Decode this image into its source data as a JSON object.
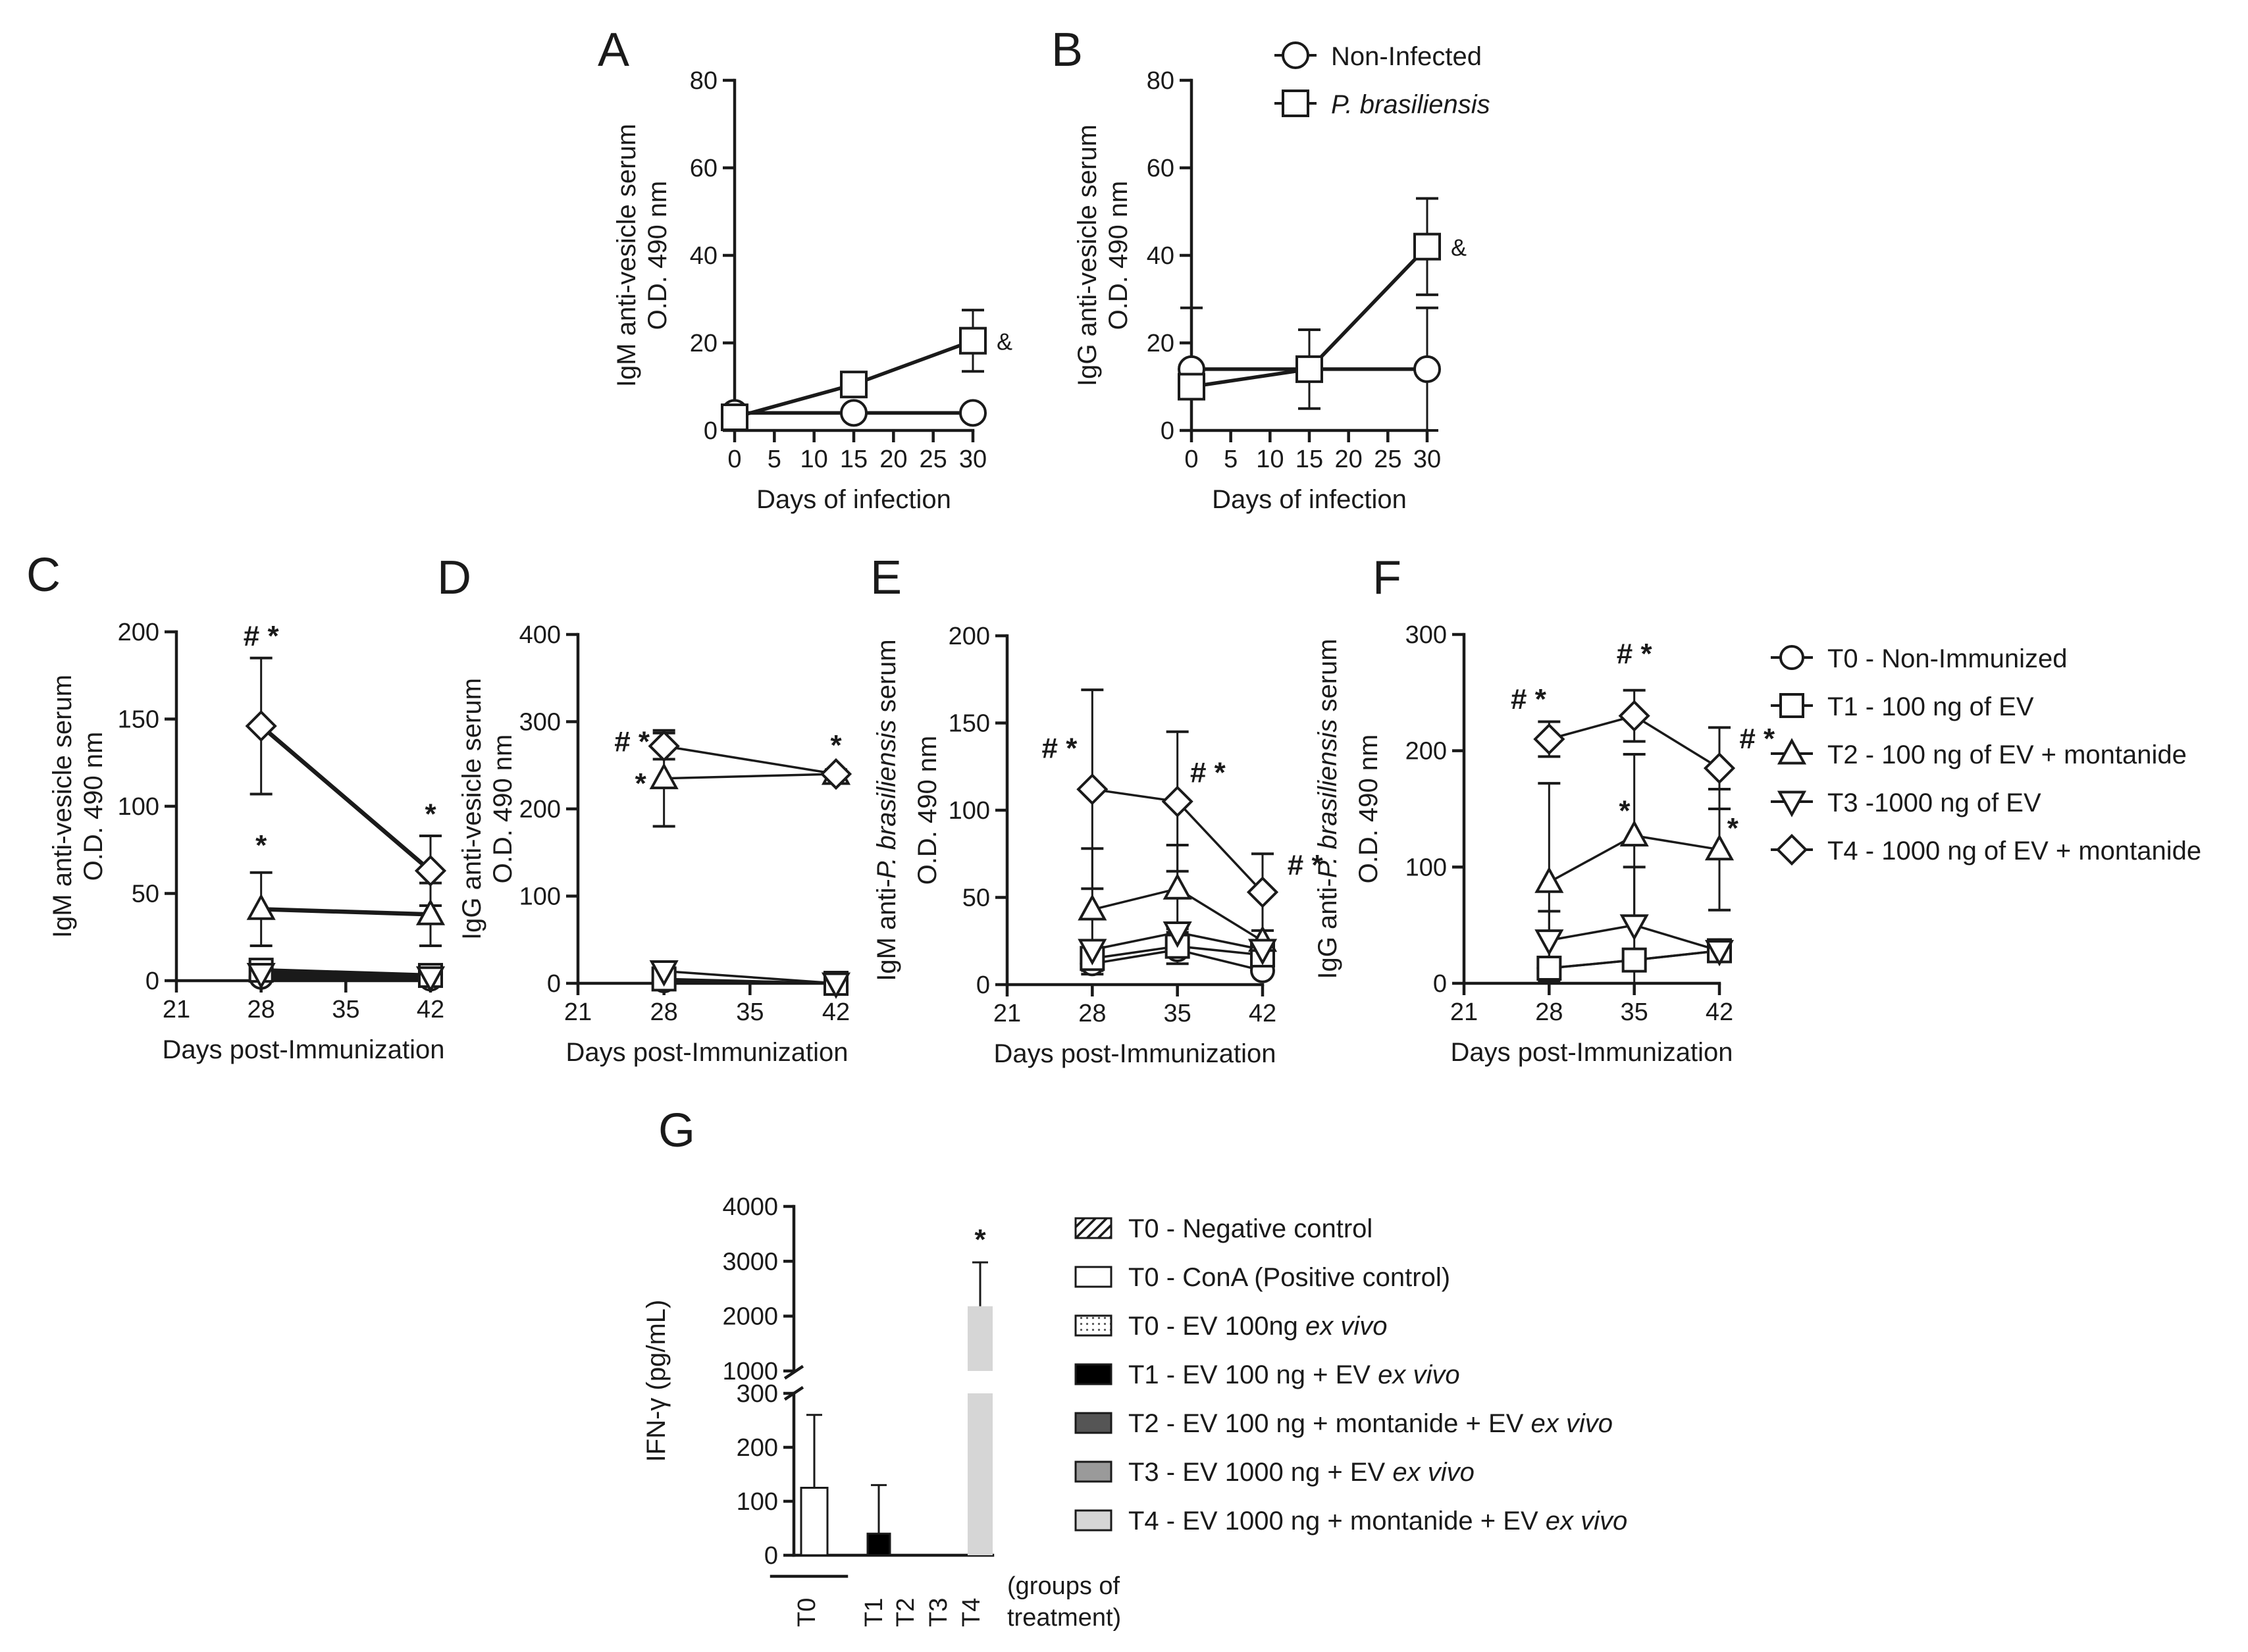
{
  "chart_data": [
    {
      "id": "A",
      "type": "line",
      "panel_label": "A",
      "xlabel": "Days of infection",
      "ylabel_lines": [
        "IgM anti-vesicle serum",
        "O.D. 490 nm"
      ],
      "xlim": [
        0,
        30
      ],
      "ylim": [
        0,
        80
      ],
      "xticks": [
        "0",
        "5",
        "10",
        "15",
        "20",
        "25",
        "30"
      ],
      "xtick_values": [
        0,
        5,
        10,
        15,
        20,
        25,
        30
      ],
      "yticks": [
        "0",
        "20",
        "40",
        "60",
        "80"
      ],
      "ytick_values": [
        0,
        20,
        40,
        60,
        80
      ],
      "series": [
        {
          "name": "Non-Infected",
          "marker": "circle",
          "x": [
            0,
            15,
            30
          ],
          "y": [
            4,
            4,
            4
          ],
          "err": [
            0,
            0,
            0
          ]
        },
        {
          "name": "P. brasiliensis",
          "marker": "square",
          "x": [
            0,
            15,
            30
          ],
          "y": [
            3,
            10.5,
            20.5
          ],
          "err": [
            0,
            0,
            7
          ]
        }
      ],
      "annotations": [
        {
          "text": "&",
          "x": 30,
          "y": 20.5
        }
      ]
    },
    {
      "id": "B",
      "type": "line",
      "panel_label": "B",
      "xlabel": "Days of infection",
      "ylabel_lines": [
        "IgG anti-vesicle serum",
        "O.D. 490 nm"
      ],
      "xlim": [
        0,
        30
      ],
      "ylim": [
        0,
        80
      ],
      "xticks": [
        "0",
        "5",
        "10",
        "15",
        "20",
        "25",
        "30"
      ],
      "xtick_values": [
        0,
        5,
        10,
        15,
        20,
        25,
        30
      ],
      "yticks": [
        "0",
        "20",
        "40",
        "60",
        "80"
      ],
      "ytick_values": [
        0,
        20,
        40,
        60,
        80
      ],
      "series": [
        {
          "name": "Non-Infected",
          "marker": "circle",
          "x": [
            0,
            15,
            30
          ],
          "y": [
            14,
            14,
            14
          ],
          "err": [
            0,
            0,
            14
          ]
        },
        {
          "name": "P. brasiliensis",
          "marker": "square",
          "x": [
            0,
            15,
            30
          ],
          "y": [
            10,
            14,
            42
          ],
          "err": [
            18,
            9,
            11
          ]
        }
      ],
      "annotations": [
        {
          "text": "&",
          "x": 30,
          "y": 42
        }
      ]
    },
    {
      "id": "C",
      "type": "line",
      "panel_label": "C",
      "xlabel": "Days post-Immunization",
      "ylabel_lines": [
        "IgM anti-vesicle serum",
        "O.D. 490 nm"
      ],
      "xlim": [
        21,
        42
      ],
      "ylim": [
        0,
        200
      ],
      "xticks": [
        "21",
        "28",
        "35",
        "42"
      ],
      "xtick_values": [
        21,
        28,
        35,
        42
      ],
      "yticks": [
        "0",
        "50",
        "100",
        "150",
        "200"
      ],
      "ytick_values": [
        0,
        50,
        100,
        150,
        200
      ],
      "series": [
        {
          "name": "T0 - Non-Immunized",
          "marker": "circle",
          "x": [
            28,
            42
          ],
          "y": [
            2,
            1
          ],
          "err": [
            0,
            0
          ]
        },
        {
          "name": "T1 - 100 ng of EV",
          "marker": "square",
          "x": [
            28,
            42
          ],
          "y": [
            6,
            3
          ],
          "err": [
            0,
            0
          ]
        },
        {
          "name": "T2 - 100 ng of EV + montanide",
          "marker": "triangle-up",
          "x": [
            28,
            42
          ],
          "y": [
            41,
            38
          ],
          "err": [
            21,
            18
          ]
        },
        {
          "name": "T3 -1000 ng of EV",
          "marker": "triangle-down",
          "x": [
            28,
            42
          ],
          "y": [
            4,
            2
          ],
          "err": [
            0,
            0
          ]
        },
        {
          "name": "T4 - 1000 ng of EV + montanide",
          "marker": "diamond",
          "x": [
            28,
            42
          ],
          "y": [
            146,
            63
          ],
          "err": [
            39,
            20
          ]
        }
      ],
      "annotations": [
        {
          "text": "# *",
          "x": 28,
          "y": 192
        },
        {
          "text": "*",
          "x": 28,
          "y": 72
        },
        {
          "text": "*",
          "x": 42,
          "y": 90
        }
      ]
    },
    {
      "id": "D",
      "type": "line",
      "panel_label": "D",
      "xlabel": "Days post-Immunization",
      "ylabel_lines": [
        "IgG anti-vesicle serum",
        "O.D. 490 nm"
      ],
      "xlim": [
        21,
        42
      ],
      "ylim": [
        0,
        400
      ],
      "xticks": [
        "21",
        "28",
        "35",
        "42"
      ],
      "xtick_values": [
        21,
        28,
        35,
        42
      ],
      "yticks": [
        "0",
        "100",
        "200",
        "300",
        "400"
      ],
      "ytick_values": [
        0,
        100,
        200,
        300,
        400
      ],
      "series": [
        {
          "name": "T0 - Non-Immunized",
          "marker": "circle",
          "x": [
            28,
            42
          ],
          "y": [
            3,
            0
          ],
          "err": [
            0,
            0
          ]
        },
        {
          "name": "T1 - 100 ng of EV",
          "marker": "square",
          "x": [
            28,
            42
          ],
          "y": [
            5,
            0
          ],
          "err": [
            0,
            0
          ]
        },
        {
          "name": "T2 - 100 ng of EV + montanide",
          "marker": "triangle-up",
          "x": [
            28,
            42
          ],
          "y": [
            235,
            240
          ],
          "err": [
            55,
            5
          ]
        },
        {
          "name": "T3 -1000 ng of EV",
          "marker": "triangle-down",
          "x": [
            28,
            42
          ],
          "y": [
            14,
            0
          ],
          "err": [
            0,
            0
          ]
        },
        {
          "name": "T4 - 1000 ng of EV + montanide",
          "marker": "diamond",
          "x": [
            28,
            42
          ],
          "y": [
            272,
            240
          ],
          "err": [
            15,
            5
          ]
        }
      ],
      "annotations": [
        {
          "text": "# *",
          "x": 25.4,
          "y": 266
        },
        {
          "text": "*",
          "x": 26.1,
          "y": 218
        },
        {
          "text": "*",
          "x": 42,
          "y": 262
        }
      ]
    },
    {
      "id": "E",
      "type": "line",
      "panel_label": "E",
      "xlabel": "Days post-Immunization",
      "ylabel_lines": [
        "IgM anti-P. brasiliensis serum",
        "O.D. 490 nm"
      ],
      "xlim": [
        21,
        42
      ],
      "ylim": [
        0,
        200
      ],
      "xticks": [
        "21",
        "28",
        "35",
        "42"
      ],
      "xtick_values": [
        21,
        28,
        35,
        42
      ],
      "yticks": [
        "0",
        "50",
        "100",
        "150",
        "200"
      ],
      "ytick_values": [
        0,
        50,
        100,
        150,
        200
      ],
      "series": [
        {
          "name": "T0 - Non-Immunized",
          "marker": "circle",
          "x": [
            28,
            35,
            42
          ],
          "y": [
            12,
            20,
            8
          ],
          "err": [
            0,
            0,
            0
          ]
        },
        {
          "name": "T1 - 100 ng of EV",
          "marker": "square",
          "x": [
            28,
            35,
            42
          ],
          "y": [
            15,
            22,
            17
          ],
          "err": [
            9,
            10,
            0
          ]
        },
        {
          "name": "T2 - 100 ng of EV + montanide",
          "marker": "triangle-up",
          "x": [
            28,
            35,
            42
          ],
          "y": [
            43,
            55,
            25
          ],
          "err": [
            35,
            25,
            0
          ]
        },
        {
          "name": "T3 -1000 ng of EV",
          "marker": "triangle-down",
          "x": [
            28,
            35,
            42
          ],
          "y": [
            20,
            30,
            20
          ],
          "err": [
            0,
            0,
            0
          ]
        },
        {
          "name": "T4 - 1000 ng of EV + montanide",
          "marker": "diamond",
          "x": [
            28,
            35,
            42
          ],
          "y": [
            112,
            105,
            53
          ],
          "err": [
            57,
            40,
            22
          ]
        }
      ],
      "annotations": [
        {
          "text": "# *",
          "x": 25.3,
          "y": 130
        },
        {
          "text": "# *",
          "x": 37.5,
          "y": 116
        },
        {
          "text": "# *",
          "x": 45.5,
          "y": 63
        }
      ]
    },
    {
      "id": "F",
      "type": "line",
      "panel_label": "F",
      "xlabel": "Days post-Immunization",
      "ylabel_lines": [
        "IgG anti-P. brasiliensis serum",
        "O.D. 490 nm"
      ],
      "xlim": [
        21,
        42
      ],
      "ylim": [
        0,
        300
      ],
      "xticks": [
        "21",
        "28",
        "35",
        "42"
      ],
      "xtick_values": [
        21,
        28,
        35,
        42
      ],
      "yticks": [
        "0",
        "100",
        "200",
        "300"
      ],
      "ytick_values": [
        0,
        100,
        200,
        300
      ],
      "series": [
        {
          "name": "T0 - Non-Immunized",
          "marker": "circle",
          "x": [
            28,
            35,
            42
          ],
          "y": [
            13,
            20,
            28
          ],
          "err": [
            0,
            0,
            0
          ]
        },
        {
          "name": "T1 - 100 ng of EV",
          "marker": "square",
          "x": [
            28,
            35,
            42
          ],
          "y": [
            13,
            20,
            28
          ],
          "err": [
            0,
            0,
            0
          ]
        },
        {
          "name": "T2 - 100 ng of EV + montanide",
          "marker": "triangle-up",
          "x": [
            28,
            35,
            42
          ],
          "y": [
            87,
            127,
            115
          ],
          "err": [
            85,
            70,
            52
          ]
        },
        {
          "name": "T3 -1000 ng of EV",
          "marker": "triangle-down",
          "x": [
            28,
            35,
            42
          ],
          "y": [
            37,
            50,
            28
          ],
          "err": [
            25,
            50,
            0
          ]
        },
        {
          "name": "T4 - 1000 ng of EV + montanide",
          "marker": "diamond",
          "x": [
            28,
            35,
            42
          ],
          "y": [
            210,
            230,
            185
          ],
          "err": [
            15,
            22,
            35
          ]
        }
      ],
      "annotations": [
        {
          "text": "# *",
          "x": 26.3,
          "y": 236
        },
        {
          "text": "# *",
          "x": 35,
          "y": 275
        },
        {
          "text": "# *",
          "x": 45.1,
          "y": 202
        },
        {
          "text": "*",
          "x": 34.2,
          "y": 140
        },
        {
          "text": "*",
          "x": 43.1,
          "y": 125
        }
      ]
    },
    {
      "id": "G",
      "type": "bar",
      "panel_label": "G",
      "ylabel": "IFN-γ (pg/mL)",
      "y_lower_ticks": [
        "0",
        "100",
        "200",
        "300"
      ],
      "y_lower_values": [
        0,
        100,
        200,
        300
      ],
      "y_upper_ticks": [
        "1000",
        "2000",
        "3000",
        "4000"
      ],
      "y_upper_values": [
        1000,
        2000,
        3000,
        4000
      ],
      "axis_break": [
        300,
        1000
      ],
      "categories": [
        "T0 - Negative control",
        "T0 - ConA (Positive control)",
        "T0 - EV 100ng ex vivo",
        "T1 - EV 100 ng + EV ex vivo",
        "T2 - EV 100 ng + montanide + EV ex vivo",
        "T3 - EV 1000 ng + EV ex vivo",
        "T4 - EV 1000 ng + montanide + EV ex vivo"
      ],
      "values": [
        0,
        125,
        0,
        40,
        0,
        0,
        2180
      ],
      "errors": [
        0,
        135,
        0,
        90,
        0,
        0,
        800
      ],
      "group_labels": [
        "T0",
        "T1",
        "T2",
        "T3",
        "T4"
      ],
      "group_caption": "(groups of treatment)",
      "annotations": [
        {
          "text": "*",
          "category": "T4 - EV 1000 ng + montanide + EV ex vivo"
        }
      ]
    }
  ],
  "legend_top": {
    "items": [
      {
        "marker": "circle",
        "label": "Non-Infected"
      },
      {
        "marker": "square",
        "label": "P. brasiliensis"
      }
    ]
  },
  "legend_middle": {
    "items": [
      {
        "marker": "circle",
        "label": "T0 - Non-Immunized"
      },
      {
        "marker": "square",
        "label": "T1 - 100 ng of EV"
      },
      {
        "marker": "triangle-up",
        "label": "T2 - 100 ng of EV + montanide"
      },
      {
        "marker": "triangle-down",
        "label": "T3 -1000 ng of EV"
      },
      {
        "marker": "diamond",
        "label": "T4 - 1000 ng of EV + montanide"
      }
    ]
  },
  "legend_bottom": {
    "items": [
      {
        "swatch": "hatched",
        "color": "#ffffff",
        "label": "T0 - Negative control"
      },
      {
        "swatch": "open",
        "color": "#ffffff",
        "label": "T0 - ConA (Positive control)"
      },
      {
        "swatch": "dotted",
        "color": "#ffffff",
        "label": "T0 - EV 100ng ex vivo"
      },
      {
        "swatch": "solid",
        "color": "#000000",
        "label": "T1 - EV 100 ng + EV ex vivo"
      },
      {
        "swatch": "solid",
        "color": "#555555",
        "label": "T2 - EV 100 ng + montanide + EV ex vivo"
      },
      {
        "swatch": "solid",
        "color": "#9a9a9a",
        "label": "T3 - EV 1000 ng + EV ex vivo"
      },
      {
        "swatch": "solid",
        "color": "#d6d6d6",
        "label": "T4 - EV 1000 ng + montanide + EV ex vivo"
      }
    ]
  }
}
